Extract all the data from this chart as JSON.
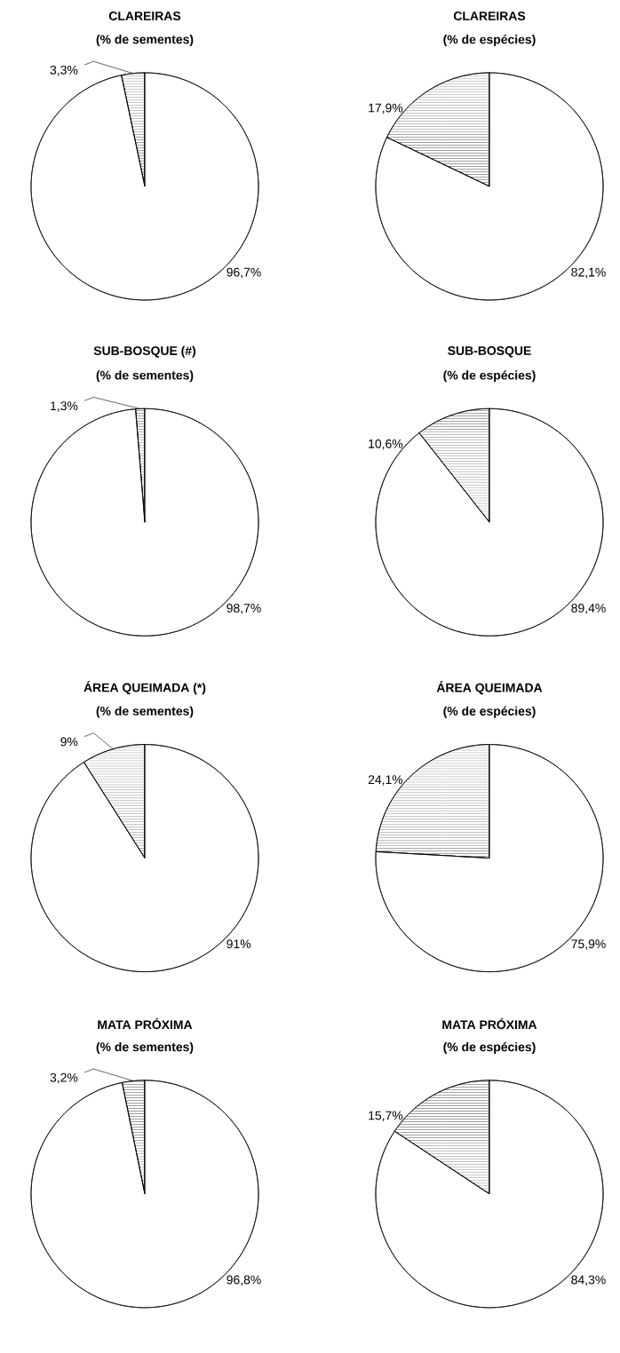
{
  "chart_data": [
    {
      "type": "pie",
      "title": "CLAREIRAS",
      "subtitle": "(% de sementes)",
      "categories": [
        null,
        null
      ],
      "values": [
        3.3,
        96.7
      ],
      "colors": [
        "#000000",
        "#ffffff"
      ],
      "value_labels": [
        "3,3%",
        "96,7%"
      ]
    },
    {
      "type": "pie",
      "title": "CLAREIRAS",
      "subtitle": "(% de espécies)",
      "categories": [
        null,
        null
      ],
      "values": [
        17.9,
        82.1
      ],
      "colors": [
        "#000000",
        "#ffffff"
      ],
      "value_labels": [
        "17,9%",
        "82,1%"
      ]
    },
    {
      "type": "pie",
      "title": "SUB-BOSQUE (#)",
      "subtitle": "(% de sementes)",
      "categories": [
        null,
        null
      ],
      "values": [
        1.3,
        98.7
      ],
      "colors": [
        "#000000",
        "#ffffff"
      ],
      "value_labels": [
        "1,3%",
        "98,7%"
      ]
    },
    {
      "type": "pie",
      "title": "SUB-BOSQUE",
      "subtitle": "(% de espécies)",
      "categories": [
        null,
        null
      ],
      "values": [
        10.6,
        89.4
      ],
      "colors": [
        "#000000",
        "#ffffff"
      ],
      "value_labels": [
        "10,6%",
        "89,4%"
      ]
    },
    {
      "type": "pie",
      "title": "ÁREA QUEIMADA (*)",
      "subtitle": "(% de sementes)",
      "categories": [
        null,
        null
      ],
      "values": [
        9,
        91
      ],
      "colors": [
        "#000000",
        "#ffffff"
      ],
      "value_labels": [
        "9%",
        "91%"
      ]
    },
    {
      "type": "pie",
      "title": "ÁREA QUEIMADA",
      "subtitle": "(% de espécies)",
      "categories": [
        null,
        null
      ],
      "values": [
        24.1,
        75.9
      ],
      "colors": [
        "#000000",
        "#ffffff"
      ],
      "value_labels": [
        "24,1%",
        "75,9%"
      ]
    },
    {
      "type": "pie",
      "title": "MATA PRÓXIMA",
      "subtitle": "(% de sementes)",
      "categories": [
        null,
        null
      ],
      "values": [
        3.2,
        96.8
      ],
      "colors": [
        "#000000",
        "#ffffff"
      ],
      "value_labels": [
        "3,2%",
        "96,8%"
      ]
    },
    {
      "type": "pie",
      "title": "MATA PRÓXIMA",
      "subtitle": "(% de espécies)",
      "categories": [
        null,
        null
      ],
      "values": [
        15.7,
        84.3
      ],
      "colors": [
        "#000000",
        "#ffffff"
      ],
      "value_labels": [
        "15,7%",
        "84,3%"
      ]
    }
  ]
}
